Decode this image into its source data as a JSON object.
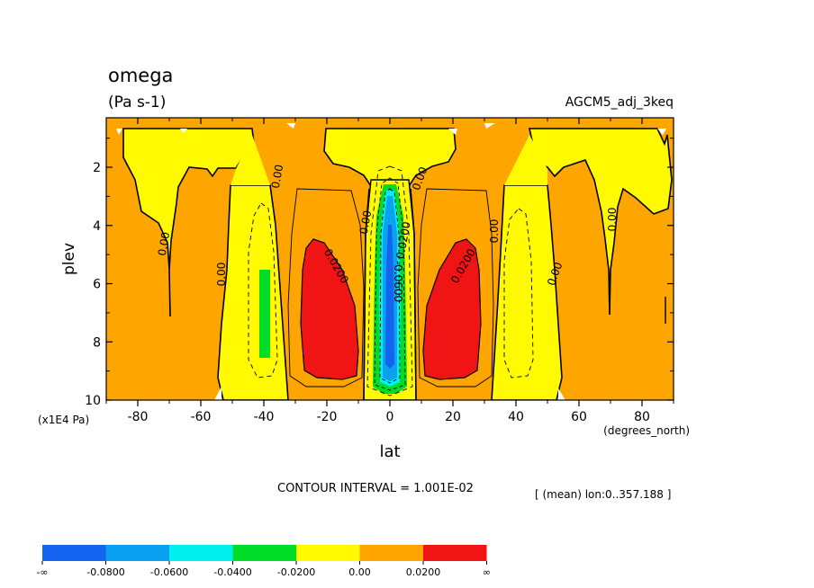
{
  "chart_data": {
    "type": "contour",
    "title": "omega",
    "units": "(Pa s-1)",
    "dataset": "AGCM5_adj_3keq",
    "xlabel": "lat",
    "x_units": "(degrees_north)",
    "ylabel": "plev",
    "y_units": "(x1E4 Pa)",
    "xlim": [
      -90,
      90
    ],
    "ylim": [
      10,
      0.3
    ],
    "x_ticks": [
      -80,
      -60,
      -40,
      -20,
      0,
      20,
      40,
      60,
      80
    ],
    "x_tick_labels": [
      "-80",
      "-60",
      "-40",
      "-20",
      "0",
      "20",
      "40",
      "60",
      "80"
    ],
    "y_ticks": [
      2,
      4,
      6,
      8,
      10
    ],
    "y_tick_labels": [
      "2",
      "4",
      "6",
      "8",
      "10"
    ],
    "contour_interval_text": "CONTOUR INTERVAL = 1.001E-02",
    "mean_text": "[ (mean) lon:0..357.188 ]",
    "contour_labels": [
      "0.00",
      "0.00",
      "0.00",
      "0.00",
      "0.00",
      "0.00",
      "0.00",
      "0.00",
      "0.0200",
      "0.0200",
      "0.0200",
      "-0.0600"
    ],
    "colorbar": {
      "colors": [
        "#1464f0",
        "#0ca0f0",
        "#00f0f0",
        "#00dc28",
        "#fffa00",
        "#ffa500",
        "#f01414"
      ],
      "labels": [
        "-∞",
        "-0.0800",
        "-0.0600",
        "-0.0400",
        "-0.0200",
        "0.00",
        "0.0200",
        "∞"
      ]
    },
    "fill_regions": [
      {
        "level": "0.00 to 0.0200",
        "color": "#ffa500",
        "lat": [
          -90,
          90
        ],
        "plev": [
          0.3,
          10
        ]
      },
      {
        "level": "-0.0200 to 0.00",
        "color": "#fffa00",
        "lat": [
          -88,
          -28
        ],
        "plev": [
          0.4,
          10
        ]
      },
      {
        "level": "-0.0200 to 0.00",
        "color": "#fffa00",
        "lat": [
          28,
          88
        ],
        "plev": [
          0.4,
          10
        ]
      },
      {
        "level": "-0.0200 to 0.00",
        "color": "#fffa00",
        "lat": [
          -20,
          20
        ],
        "plev": [
          0.4,
          2.2
        ]
      },
      {
        "level": "-0.0200 to 0.00",
        "color": "#fffa00",
        "lat": [
          -6,
          6
        ],
        "plev": [
          1.8,
          10
        ]
      },
      {
        "level": "-0.0400 to -0.0200",
        "color": "#00dc28",
        "lat": [
          -41,
          -39
        ],
        "plev": [
          5.5,
          8.5
        ]
      },
      {
        "level": "-0.0400 to -0.0200",
        "color": "#00dc28",
        "lat": [
          -4,
          4
        ],
        "plev": [
          2.3,
          9.8
        ]
      },
      {
        "level": "-0.0600 to -0.0400",
        "color": "#00f0f0",
        "lat": [
          -2.6,
          2.6
        ],
        "plev": [
          2.7,
          9.3
        ]
      },
      {
        "level": "-0.0800 to -0.0600",
        "color": "#0ca0f0",
        "lat": [
          -1.8,
          1.8
        ],
        "plev": [
          2.9,
          9.3
        ]
      },
      {
        "level": "< -0.0800",
        "color": "#1464f0",
        "lat": [
          -0.6,
          0.6
        ],
        "plev": [
          3.2,
          9.1
        ]
      },
      {
        "level": "> 0.0200",
        "color": "#f01414",
        "lat": [
          -23.8,
          -10.2
        ],
        "plev": [
          4.4,
          9.5
        ]
      },
      {
        "level": "> 0.0200",
        "color": "#f01414",
        "lat": [
          10.2,
          23.8
        ],
        "plev": [
          4.4,
          9.5
        ]
      }
    ]
  }
}
